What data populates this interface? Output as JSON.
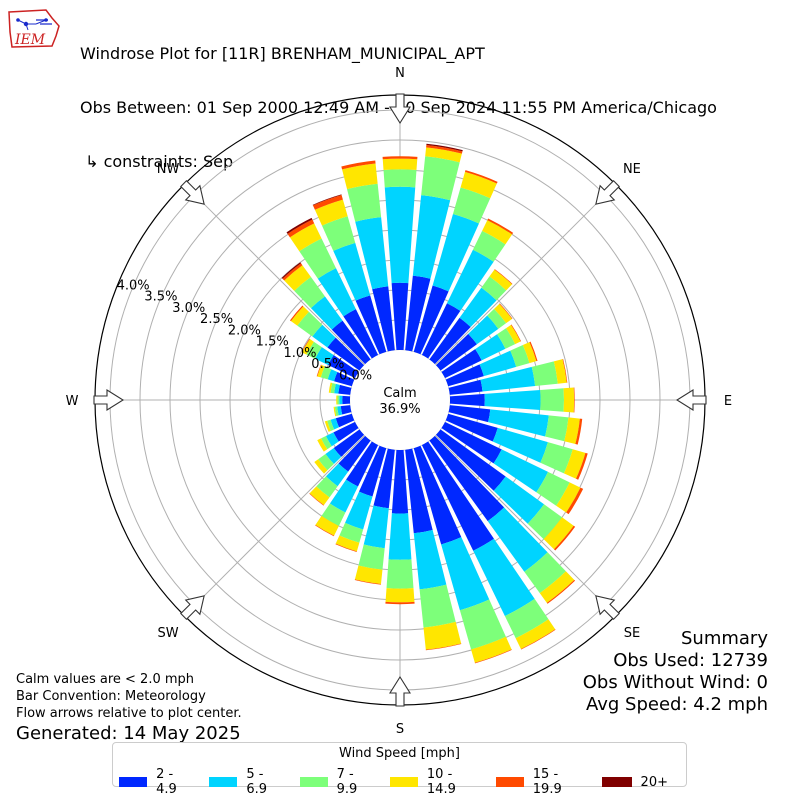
{
  "header": {
    "title_line1": "Windrose Plot for [11R] BRENHAM_MUNICIPAL_APT",
    "title_line2": "Obs Between: 01 Sep 2000 12:49 AM - 30 Sep 2024 11:55 PM America/Chicago",
    "title_line3": " ↳ constraints: Sep",
    "logo_text": "IEM"
  },
  "summary": {
    "heading": "Summary",
    "obs_used": "Obs Used: 12739",
    "obs_without_wind": "Obs Without Wind: 0",
    "avg_speed": "Avg Speed: 4.2 mph"
  },
  "notes": {
    "calm_note": "Calm values are < 2.0 mph",
    "bar_convention": "Bar Convention: Meteorology",
    "flow_arrows": "Flow arrows relative to plot center.",
    "generated": "Generated: 14 May 2025"
  },
  "legend": {
    "title": "Wind Speed [mph]",
    "items": [
      {
        "label": "2 - 4.9",
        "color": "#0028ff"
      },
      {
        "label": "5 - 6.9",
        "color": "#00d4ff"
      },
      {
        "label": "7 - 9.9",
        "color": "#7dff7a"
      },
      {
        "label": "10 - 14.9",
        "color": "#ffe600"
      },
      {
        "label": "15 - 19.9",
        "color": "#ff4a00"
      },
      {
        "label": "20+",
        "color": "#800000"
      }
    ]
  },
  "chart_data": {
    "type": "windrose",
    "center_label": "Calm",
    "calm_percent": "36.9%",
    "calm": 36.9,
    "radial_unit": "%",
    "radial_max": 4.25,
    "radial_ticks": [
      0.0,
      0.5,
      1.0,
      1.5,
      2.0,
      2.5,
      3.0,
      3.5,
      4.0
    ],
    "radial_tick_labels": [
      "0.0%",
      "0.5%",
      "1.0%",
      "1.5%",
      "2.0%",
      "2.5%",
      "3.0%",
      "3.5%",
      "4.0%"
    ],
    "compass_labels": [
      "N",
      "NE",
      "E",
      "SE",
      "S",
      "SW",
      "W",
      "NW"
    ],
    "direction_bin_width_deg": 10,
    "speed_bins": [
      "2 - 4.9",
      "5 - 6.9",
      "7 - 9.9",
      "10 - 14.9",
      "15 - 19.9",
      "20+"
    ],
    "series_colors": [
      "#0028ff",
      "#00d4ff",
      "#7dff7a",
      "#ffe600",
      "#ff4a00",
      "#800000"
    ],
    "direction_deg": [
      0,
      10,
      20,
      30,
      40,
      50,
      60,
      70,
      80,
      90,
      100,
      110,
      120,
      130,
      140,
      150,
      160,
      170,
      180,
      190,
      200,
      210,
      220,
      230,
      240,
      250,
      260,
      270,
      280,
      290,
      300,
      310,
      320,
      330,
      340,
      350
    ],
    "cumulative_percent": [
      [
        1.12,
        2.72,
        3.01,
        3.19,
        3.23,
        3.23
      ],
      [
        1.25,
        2.6,
        3.25,
        3.4,
        3.44,
        3.46
      ],
      [
        1.15,
        2.39,
        2.85,
        3.12,
        3.15,
        3.15
      ],
      [
        0.96,
        1.95,
        2.3,
        2.5,
        2.53,
        2.53
      ],
      [
        0.86,
        1.48,
        1.71,
        1.85,
        1.86,
        1.86
      ],
      [
        0.75,
        1.19,
        1.35,
        1.47,
        1.48,
        1.48
      ],
      [
        0.68,
        1.12,
        1.3,
        1.4,
        1.41,
        1.41
      ],
      [
        0.62,
        1.18,
        1.41,
        1.53,
        1.55,
        1.55
      ],
      [
        0.55,
        1.43,
        1.81,
        1.96,
        1.97,
        1.97
      ],
      [
        0.58,
        1.51,
        1.9,
        2.07,
        2.08,
        2.08
      ],
      [
        0.68,
        1.66,
        1.99,
        2.18,
        2.22,
        2.22
      ],
      [
        0.86,
        1.73,
        2.16,
        2.38,
        2.42,
        2.42
      ],
      [
        1.05,
        1.91,
        2.31,
        2.51,
        2.56,
        2.56
      ],
      [
        1.34,
        2.13,
        2.5,
        2.74,
        2.77,
        2.77
      ],
      [
        1.66,
        2.7,
        3.14,
        3.34,
        3.36,
        3.36
      ],
      [
        1.96,
        3.17,
        3.58,
        3.78,
        3.79,
        3.79
      ],
      [
        1.67,
        2.81,
        3.49,
        3.72,
        3.73,
        3.73
      ],
      [
        1.4,
        2.34,
        2.98,
        3.35,
        3.36,
        3.36
      ],
      [
        1.06,
        1.83,
        2.31,
        2.54,
        2.57,
        2.57
      ],
      [
        0.98,
        1.65,
        2.01,
        2.25,
        2.26,
        2.26
      ],
      [
        0.84,
        1.41,
        1.64,
        1.79,
        1.8,
        1.8
      ],
      [
        0.77,
        1.25,
        1.5,
        1.68,
        1.69,
        1.69
      ],
      [
        0.64,
        0.94,
        1.17,
        1.33,
        1.34,
        1.34
      ],
      [
        0.53,
        0.7,
        0.85,
        0.93,
        0.93,
        0.93
      ],
      [
        0.4,
        0.54,
        0.63,
        0.7,
        0.7,
        0.7
      ],
      [
        0.28,
        0.37,
        0.43,
        0.47,
        0.47,
        0.47
      ],
      [
        0.16,
        0.22,
        0.26,
        0.28,
        0.28,
        0.28
      ],
      [
        0.13,
        0.18,
        0.21,
        0.23,
        0.23,
        0.23
      ],
      [
        0.2,
        0.27,
        0.33,
        0.36,
        0.36,
        0.36
      ],
      [
        0.31,
        0.42,
        0.54,
        0.6,
        0.61,
        0.61
      ],
      [
        0.5,
        0.74,
        0.9,
        0.98,
        0.99,
        0.99
      ],
      [
        0.66,
        0.97,
        1.28,
        1.41,
        1.43,
        1.43
      ],
      [
        0.8,
        1.3,
        1.7,
        1.94,
        1.98,
        2.0
      ],
      [
        0.85,
        1.61,
        2.16,
        2.44,
        2.51,
        2.54
      ],
      [
        0.98,
        1.89,
        2.35,
        2.64,
        2.72,
        2.73
      ],
      [
        1.07,
        2.23,
        2.79,
        3.13,
        3.18,
        3.18
      ]
    ],
    "grid": true
  }
}
